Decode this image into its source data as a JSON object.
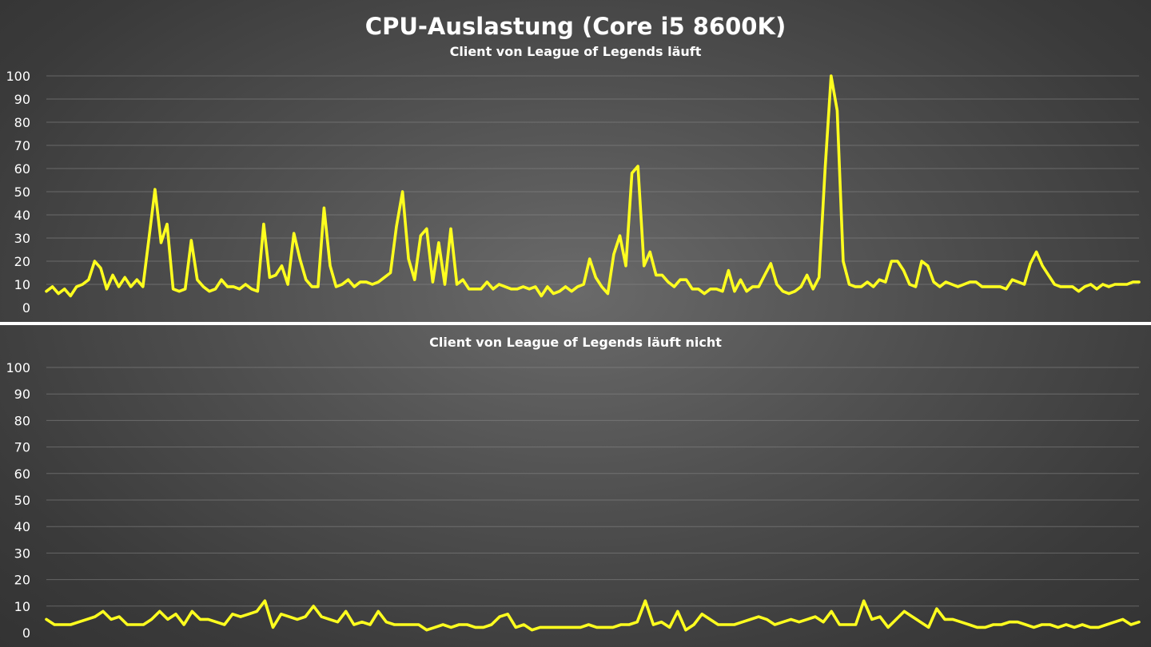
{
  "chart_title": "CPU-Auslastung (Core i5 8600K)",
  "colors": {
    "line": "#ffff1f",
    "background": "#4e4e4e",
    "divider": "#ffffff"
  },
  "chart_data": [
    {
      "type": "line",
      "title": "Client von League of Legends läuft",
      "xlabel": "",
      "ylabel": "",
      "ylim": [
        0,
        100
      ],
      "yticks": [
        0,
        10,
        20,
        30,
        40,
        50,
        60,
        70,
        80,
        90,
        100
      ],
      "grid": true,
      "series": [
        {
          "values": [
            7,
            9,
            6,
            8,
            5,
            9,
            10,
            12,
            20,
            17,
            8,
            14,
            9,
            13,
            9,
            12,
            9,
            30,
            51,
            28,
            36,
            8,
            7,
            8,
            29,
            12,
            9,
            7,
            8,
            12,
            9,
            9,
            8,
            10,
            8,
            7,
            36,
            13,
            14,
            18,
            10,
            32,
            21,
            12,
            9,
            9,
            43,
            18,
            9,
            10,
            12,
            9,
            11,
            11,
            10,
            11,
            13,
            15,
            35,
            50,
            21,
            12,
            31,
            34,
            11,
            28,
            10,
            34,
            10,
            12,
            8,
            8,
            8,
            11,
            8,
            10,
            9,
            8,
            8,
            9,
            8,
            9,
            5,
            9,
            6,
            7,
            9,
            7,
            9,
            10,
            21,
            13,
            9,
            6,
            23,
            31,
            18,
            58,
            61,
            18,
            24,
            14,
            14,
            11,
            9,
            12,
            12,
            8,
            8,
            6,
            8,
            8,
            7,
            16,
            7,
            12,
            7,
            9,
            9,
            14,
            19,
            10,
            7,
            6,
            7,
            9,
            14,
            8,
            13,
            60,
            100,
            85,
            20,
            10,
            9,
            9,
            11,
            9,
            12,
            11,
            20,
            20,
            16,
            10,
            9,
            20,
            18,
            11,
            9,
            11,
            10,
            9,
            10,
            11,
            11,
            9,
            9,
            9,
            9,
            8,
            12,
            11,
            10,
            19,
            24,
            18,
            14,
            10,
            9,
            9,
            9,
            7,
            9,
            10,
            8,
            10,
            9,
            10,
            10,
            10,
            11,
            11
          ]
        }
      ]
    },
    {
      "type": "line",
      "title": "Client von League of Legends läuft nicht",
      "xlabel": "",
      "ylabel": "",
      "ylim": [
        0,
        100
      ],
      "yticks": [
        0,
        10,
        20,
        30,
        40,
        50,
        60,
        70,
        80,
        90,
        100
      ],
      "grid": true,
      "series": [
        {
          "values": [
            5,
            3,
            3,
            3,
            4,
            5,
            6,
            8,
            5,
            6,
            3,
            3,
            3,
            5,
            8,
            5,
            7,
            3,
            8,
            5,
            5,
            4,
            3,
            7,
            6,
            7,
            8,
            12,
            2,
            7,
            6,
            5,
            6,
            10,
            6,
            5,
            4,
            8,
            3,
            4,
            3,
            8,
            4,
            3,
            3,
            3,
            3,
            1,
            2,
            3,
            2,
            3,
            3,
            2,
            2,
            3,
            6,
            7,
            2,
            3,
            1,
            2,
            2,
            2,
            2,
            2,
            2,
            3,
            2,
            2,
            2,
            3,
            3,
            4,
            12,
            3,
            4,
            2,
            8,
            1,
            3,
            7,
            5,
            3,
            3,
            3,
            4,
            5,
            6,
            5,
            3,
            4,
            5,
            4,
            5,
            6,
            4,
            8,
            3,
            3,
            3,
            12,
            5,
            6,
            2,
            5,
            8,
            6,
            4,
            2,
            9,
            5,
            5,
            4,
            3,
            2,
            2,
            3,
            3,
            4,
            4,
            3,
            2,
            3,
            3,
            2,
            3,
            2,
            3,
            2,
            2,
            3,
            4,
            5,
            3,
            4
          ]
        }
      ]
    }
  ]
}
